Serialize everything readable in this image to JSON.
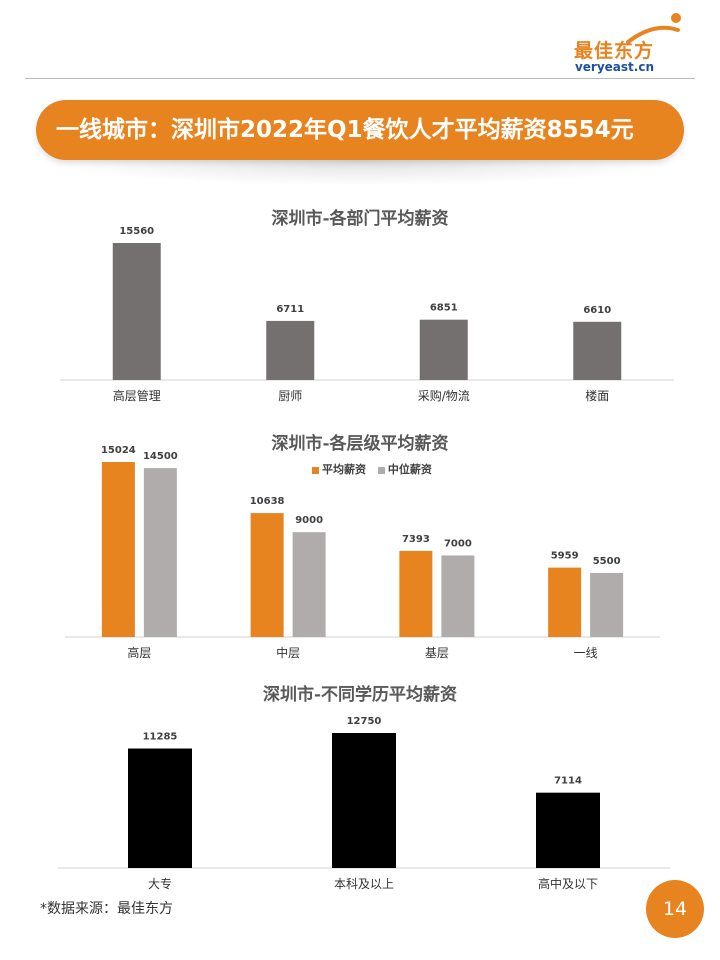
{
  "header": {
    "logo_cn": "最佳东方",
    "logo_en": "veryeast.cn"
  },
  "banner": {
    "title": "一线城市：深圳市2022年Q1餐饮人才平均薪资8554元"
  },
  "colors": {
    "accent": "#e8841f",
    "gray_bar": "#747070",
    "light_gray_bar": "#b0acac",
    "black_bar": "#000000"
  },
  "chart_data": [
    {
      "type": "bar",
      "title": "深圳市-各部门平均薪资",
      "categories": [
        "高层管理",
        "厨师",
        "采购/物流",
        "楼面"
      ],
      "values": [
        15560,
        6711,
        6851,
        6610
      ],
      "ylim": [
        0,
        15560
      ],
      "grid": false
    },
    {
      "type": "bar",
      "title": "深圳市-各层级平均薪资",
      "categories": [
        "高层",
        "中层",
        "基层",
        "一线"
      ],
      "series": [
        {
          "name": "平均薪资",
          "values": [
            15024,
            10638,
            7393,
            5959
          ]
        },
        {
          "name": "中位薪资",
          "values": [
            14500,
            9000,
            7000,
            5500
          ]
        }
      ],
      "ylim": [
        0,
        15024
      ],
      "legend": "top-center",
      "grid": false
    },
    {
      "type": "bar",
      "title": "深圳市-不同学历平均薪资",
      "categories": [
        "大专",
        "本科及以上",
        "高中及以下"
      ],
      "values": [
        11285,
        12750,
        7114
      ],
      "ylim": [
        0,
        12750
      ],
      "grid": false
    }
  ],
  "footer": {
    "source": "*数据来源：最佳东方",
    "page_number": "14"
  }
}
